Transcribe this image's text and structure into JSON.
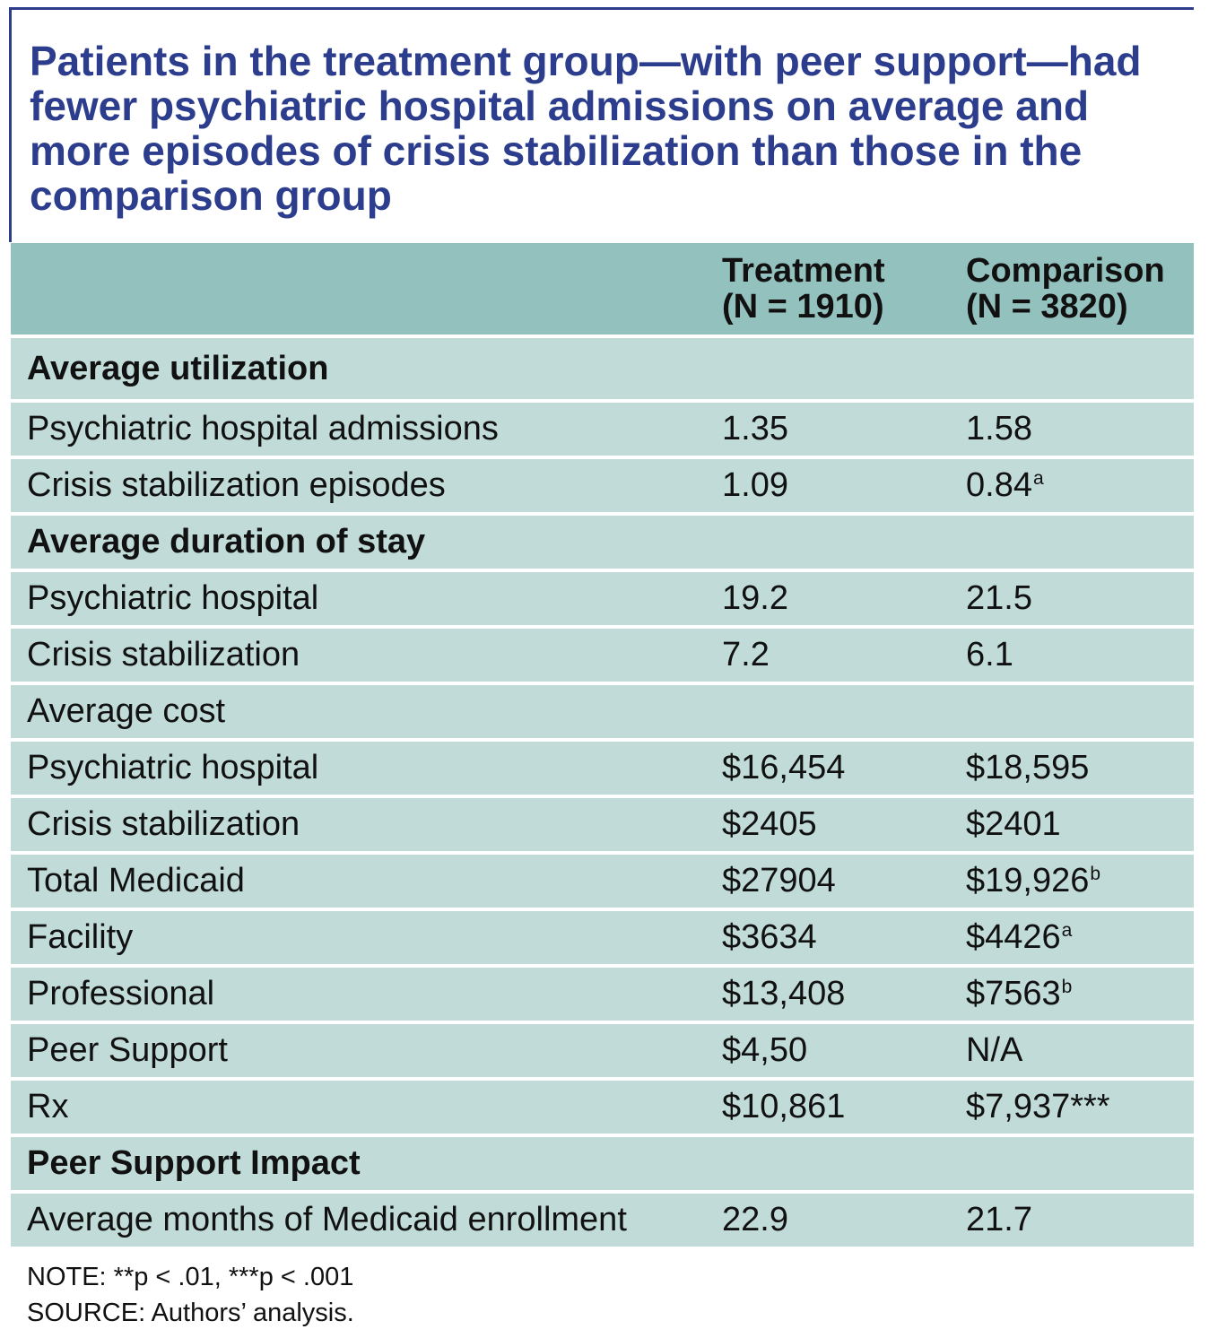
{
  "title": "Patients in the treatment group—with peer support—had fewer psychiatric hospital admissions on average and more episodes of crisis stabilization than those in the comparison group",
  "colors": {
    "accent": "#2b3d8c",
    "header_bg": "#93c1bd",
    "row_bg": "#c1dcd8"
  },
  "table": {
    "headers": {
      "treatment": {
        "label": "Treatment",
        "n": "(N = 1910)"
      },
      "comparison": {
        "label": "Comparison",
        "n": "(N = 3820)"
      }
    },
    "rows": [
      {
        "label": "Average utilization",
        "treatment": "",
        "comparison": "",
        "comparison_note": ""
      },
      {
        "label": "Psychiatric hospital admissions",
        "treatment": "1.35",
        "comparison": "1.58",
        "comparison_note": ""
      },
      {
        "label": "Crisis stabilization episodes",
        "treatment": "1.09",
        "comparison": "0.84",
        "comparison_note": "a"
      },
      {
        "label": "Average duration of stay",
        "treatment": "",
        "comparison": "",
        "comparison_note": ""
      },
      {
        "label": "Psychiatric hospital",
        "treatment": "19.2",
        "comparison": "21.5",
        "comparison_note": ""
      },
      {
        "label": "Crisis stabilization",
        "treatment": "7.2",
        "comparison": "6.1",
        "comparison_note": ""
      },
      {
        "label": "Average cost",
        "treatment": "",
        "comparison": "",
        "comparison_note": ""
      },
      {
        "label": "Psychiatric hospital",
        "treatment": "$16,454",
        "comparison": "$18,595",
        "comparison_note": ""
      },
      {
        "label": "Crisis stabilization",
        "treatment": "$2405",
        "comparison": "$2401",
        "comparison_note": ""
      },
      {
        "label": "Total Medicaid",
        "treatment": "$27904",
        "comparison": "$19,926",
        "comparison_note": "b"
      },
      {
        "label": "Facility",
        "treatment": "$3634",
        "comparison": "$4426",
        "comparison_note": "a"
      },
      {
        "label": "Professional",
        "treatment": "$13,408",
        "comparison": "$7563",
        "comparison_note": "b"
      },
      {
        "label": "Peer Support",
        "treatment": "$4,50",
        "comparison": "N/A",
        "comparison_note": ""
      },
      {
        "label": "Rx",
        "treatment": "$10,861",
        "comparison": "$7,937***",
        "comparison_note": ""
      },
      {
        "label": "Peer Support Impact",
        "treatment": "",
        "comparison": "",
        "comparison_note": ""
      },
      {
        "label": "Average months of Medicaid enrollment",
        "treatment": "22.9",
        "comparison": "21.7",
        "comparison_note": ""
      }
    ]
  },
  "footer": {
    "note": "NOTE: **p < .01, ***p < .001",
    "source": "SOURCE: Authors’ analysis."
  }
}
